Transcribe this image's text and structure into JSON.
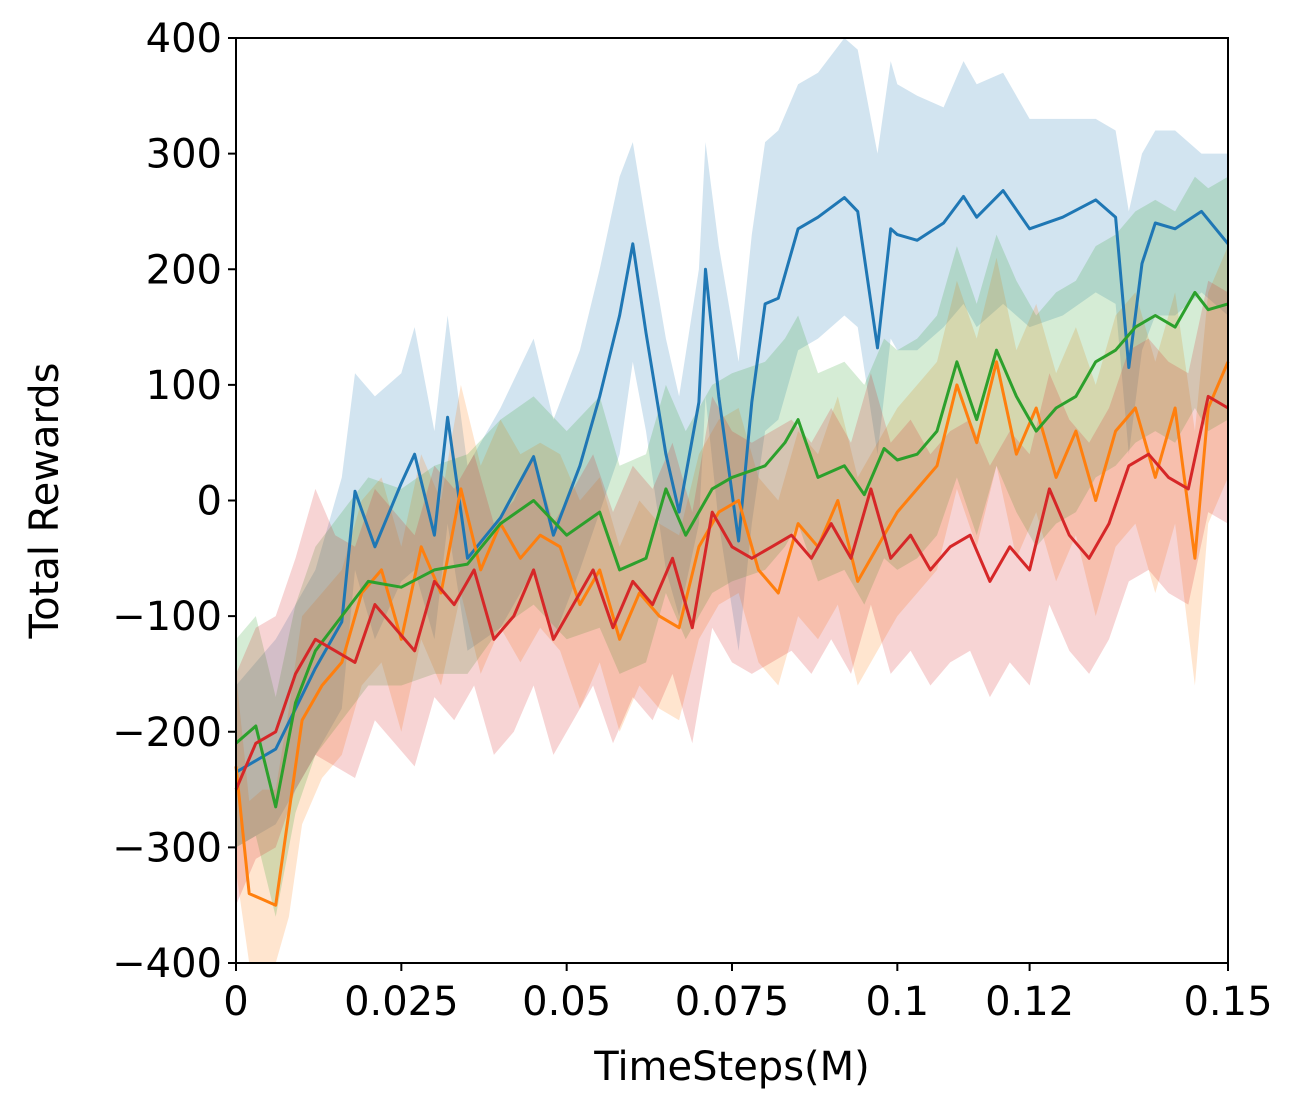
{
  "chart_data": {
    "type": "line",
    "title": "",
    "xlabel": "TimeSteps(M)",
    "ylabel": "Total Rewards",
    "xlim": [
      0,
      0.15
    ],
    "ylim": [
      -400,
      400
    ],
    "x_ticks": [
      0,
      0.025,
      0.05,
      0.075,
      0.1,
      0.12,
      0.15
    ],
    "x_tick_labels": [
      "0",
      "0.025",
      "0.05",
      "0.075",
      "0.1",
      "0.12",
      "0.15"
    ],
    "y_ticks": [
      400,
      300,
      200,
      100,
      0,
      -100,
      -200,
      -300,
      -400
    ],
    "y_tick_labels": [
      "400",
      "300",
      "200",
      "100",
      "0",
      "−100",
      "−200",
      "−300",
      "−400"
    ],
    "grid": false,
    "legend": "none",
    "series": [
      {
        "color": "#1f77b4",
        "x": [
          0,
          0.006,
          0.012,
          0.016,
          0.018,
          0.021,
          0.025,
          0.027,
          0.03,
          0.032,
          0.035,
          0.04,
          0.045,
          0.048,
          0.052,
          0.055,
          0.058,
          0.06,
          0.062,
          0.065,
          0.067,
          0.07,
          0.071,
          0.073,
          0.076,
          0.078,
          0.08,
          0.082,
          0.085,
          0.088,
          0.092,
          0.094,
          0.097,
          0.099,
          0.1,
          0.103,
          0.107,
          0.11,
          0.112,
          0.116,
          0.12,
          0.125,
          0.13,
          0.133,
          0.135,
          0.137,
          0.139,
          0.142,
          0.146,
          0.15
        ],
        "y": [
          -235,
          -215,
          -145,
          -105,
          8,
          -40,
          15,
          40,
          -30,
          72,
          -50,
          -15,
          38,
          -30,
          30,
          90,
          160,
          222,
          145,
          40,
          -10,
          85,
          200,
          90,
          -35,
          85,
          170,
          175,
          235,
          245,
          262,
          250,
          132,
          235,
          230,
          225,
          240,
          263,
          245,
          268,
          235,
          245,
          260,
          245,
          115,
          205,
          240,
          235,
          250,
          222
        ],
        "band_upper": [
          -160,
          -120,
          -60,
          20,
          110,
          90,
          110,
          150,
          60,
          160,
          30,
          80,
          140,
          70,
          130,
          200,
          280,
          310,
          240,
          140,
          90,
          200,
          310,
          220,
          120,
          230,
          310,
          320,
          360,
          370,
          400,
          390,
          300,
          380,
          360,
          350,
          340,
          380,
          360,
          370,
          330,
          330,
          330,
          320,
          250,
          300,
          320,
          320,
          300,
          300
        ],
        "band_lower": [
          -300,
          -280,
          -220,
          -180,
          -60,
          -120,
          -70,
          -60,
          -120,
          -20,
          -130,
          -110,
          -60,
          -120,
          -60,
          -10,
          40,
          120,
          60,
          -60,
          -100,
          -20,
          90,
          -20,
          -130,
          -20,
          60,
          70,
          130,
          140,
          160,
          150,
          40,
          140,
          130,
          130,
          150,
          170,
          150,
          170,
          150,
          160,
          180,
          170,
          40,
          130,
          160,
          160,
          180,
          160
        ]
      },
      {
        "color": "#ff7f0e",
        "x": [
          0,
          0.002,
          0.004,
          0.006,
          0.008,
          0.01,
          0.013,
          0.016,
          0.019,
          0.022,
          0.025,
          0.028,
          0.031,
          0.034,
          0.037,
          0.04,
          0.043,
          0.046,
          0.049,
          0.052,
          0.055,
          0.058,
          0.061,
          0.064,
          0.067,
          0.07,
          0.073,
          0.076,
          0.079,
          0.082,
          0.085,
          0.088,
          0.091,
          0.094,
          0.097,
          0.1,
          0.103,
          0.106,
          0.109,
          0.112,
          0.115,
          0.118,
          0.121,
          0.124,
          0.127,
          0.13,
          0.133,
          0.136,
          0.139,
          0.142,
          0.145,
          0.147,
          0.15
        ],
        "y": [
          -230,
          -340,
          -345,
          -350,
          -270,
          -190,
          -160,
          -140,
          -80,
          -60,
          -120,
          -40,
          -80,
          10,
          -60,
          -20,
          -50,
          -30,
          -40,
          -90,
          -60,
          -120,
          -80,
          -100,
          -110,
          -40,
          -10,
          0,
          -60,
          -80,
          -20,
          -40,
          0,
          -70,
          -40,
          -10,
          10,
          30,
          100,
          50,
          120,
          40,
          80,
          20,
          60,
          0,
          60,
          80,
          20,
          80,
          -50,
          80,
          120
        ],
        "band_upper": [
          -150,
          -260,
          -250,
          -250,
          -180,
          -100,
          -80,
          -60,
          0,
          20,
          -40,
          40,
          0,
          100,
          30,
          70,
          40,
          50,
          40,
          0,
          20,
          -40,
          0,
          -20,
          -30,
          40,
          70,
          80,
          20,
          0,
          60,
          40,
          90,
          20,
          50,
          80,
          100,
          120,
          190,
          140,
          210,
          130,
          170,
          110,
          150,
          100,
          160,
          180,
          120,
          180,
          60,
          180,
          220
        ],
        "band_lower": [
          -320,
          -400,
          -420,
          -430,
          -360,
          -280,
          -240,
          -220,
          -160,
          -140,
          -200,
          -120,
          -160,
          -80,
          -150,
          -110,
          -140,
          -110,
          -130,
          -180,
          -140,
          -200,
          -160,
          -180,
          -190,
          -120,
          -90,
          -80,
          -140,
          -160,
          -100,
          -120,
          -90,
          -160,
          -130,
          -100,
          -80,
          -60,
          10,
          -40,
          30,
          -50,
          -10,
          -70,
          -30,
          -100,
          -40,
          -20,
          -80,
          -20,
          -160,
          -20,
          20
        ]
      },
      {
        "color": "#2ca02c",
        "x": [
          0,
          0.003,
          0.006,
          0.009,
          0.012,
          0.016,
          0.02,
          0.025,
          0.03,
          0.035,
          0.04,
          0.045,
          0.05,
          0.055,
          0.058,
          0.062,
          0.065,
          0.068,
          0.072,
          0.075,
          0.08,
          0.083,
          0.085,
          0.088,
          0.092,
          0.095,
          0.098,
          0.1,
          0.103,
          0.106,
          0.109,
          0.112,
          0.115,
          0.118,
          0.121,
          0.124,
          0.127,
          0.13,
          0.133,
          0.136,
          0.139,
          0.142,
          0.145,
          0.147,
          0.15
        ],
        "y": [
          -210,
          -195,
          -265,
          -175,
          -130,
          -100,
          -70,
          -75,
          -60,
          -55,
          -20,
          0,
          -30,
          -10,
          -60,
          -50,
          10,
          -30,
          10,
          20,
          30,
          50,
          70,
          20,
          30,
          5,
          45,
          35,
          40,
          60,
          120,
          70,
          130,
          90,
          60,
          80,
          90,
          120,
          130,
          150,
          160,
          150,
          180,
          165,
          170
        ],
        "band_upper": [
          -120,
          -100,
          -170,
          -90,
          -40,
          -10,
          20,
          10,
          30,
          40,
          70,
          90,
          60,
          90,
          30,
          40,
          100,
          60,
          100,
          110,
          120,
          140,
          160,
          110,
          120,
          100,
          140,
          130,
          140,
          160,
          220,
          170,
          230,
          190,
          160,
          180,
          190,
          220,
          230,
          250,
          260,
          250,
          280,
          270,
          280
        ],
        "band_lower": [
          -300,
          -290,
          -360,
          -270,
          -220,
          -190,
          -160,
          -160,
          -150,
          -150,
          -110,
          -90,
          -120,
          -110,
          -150,
          -140,
          -80,
          -120,
          -80,
          -70,
          -60,
          -40,
          -20,
          -70,
          -60,
          -90,
          -50,
          -60,
          -50,
          -30,
          20,
          -30,
          30,
          -10,
          -40,
          -20,
          -10,
          20,
          30,
          50,
          60,
          50,
          80,
          60,
          70
        ]
      },
      {
        "color": "#d62728",
        "x": [
          0,
          0.003,
          0.006,
          0.009,
          0.012,
          0.015,
          0.018,
          0.021,
          0.024,
          0.027,
          0.03,
          0.033,
          0.036,
          0.039,
          0.042,
          0.045,
          0.048,
          0.051,
          0.054,
          0.057,
          0.06,
          0.063,
          0.066,
          0.069,
          0.072,
          0.075,
          0.078,
          0.081,
          0.084,
          0.087,
          0.09,
          0.093,
          0.096,
          0.099,
          0.102,
          0.105,
          0.108,
          0.111,
          0.114,
          0.117,
          0.12,
          0.123,
          0.126,
          0.129,
          0.132,
          0.135,
          0.138,
          0.141,
          0.144,
          0.147,
          0.15
        ],
        "y": [
          -250,
          -210,
          -200,
          -150,
          -120,
          -130,
          -140,
          -90,
          -110,
          -130,
          -70,
          -90,
          -60,
          -120,
          -100,
          -60,
          -120,
          -90,
          -60,
          -110,
          -70,
          -90,
          -50,
          -110,
          -10,
          -40,
          -50,
          -40,
          -30,
          -50,
          -20,
          -50,
          10,
          -50,
          -30,
          -60,
          -40,
          -30,
          -70,
          -40,
          -60,
          10,
          -30,
          -50,
          -20,
          30,
          40,
          20,
          10,
          90,
          80
        ],
        "band_upper": [
          -150,
          -110,
          -100,
          -50,
          10,
          -30,
          -40,
          10,
          -10,
          -30,
          30,
          10,
          40,
          -20,
          0,
          40,
          -20,
          10,
          40,
          -10,
          30,
          10,
          50,
          -10,
          90,
          60,
          50,
          60,
          70,
          50,
          80,
          50,
          110,
          50,
          70,
          40,
          60,
          70,
          30,
          60,
          40,
          110,
          70,
          50,
          80,
          130,
          140,
          120,
          110,
          190,
          180
        ],
        "band_lower": [
          -350,
          -310,
          -300,
          -250,
          -220,
          -230,
          -240,
          -190,
          -210,
          -230,
          -170,
          -190,
          -160,
          -220,
          -200,
          -160,
          -220,
          -190,
          -160,
          -210,
          -170,
          -190,
          -150,
          -210,
          -110,
          -140,
          -150,
          -140,
          -130,
          -150,
          -120,
          -150,
          -90,
          -150,
          -130,
          -160,
          -140,
          -130,
          -170,
          -140,
          -160,
          -90,
          -130,
          -150,
          -120,
          -70,
          -60,
          -80,
          -90,
          -10,
          -20
        ]
      }
    ]
  }
}
